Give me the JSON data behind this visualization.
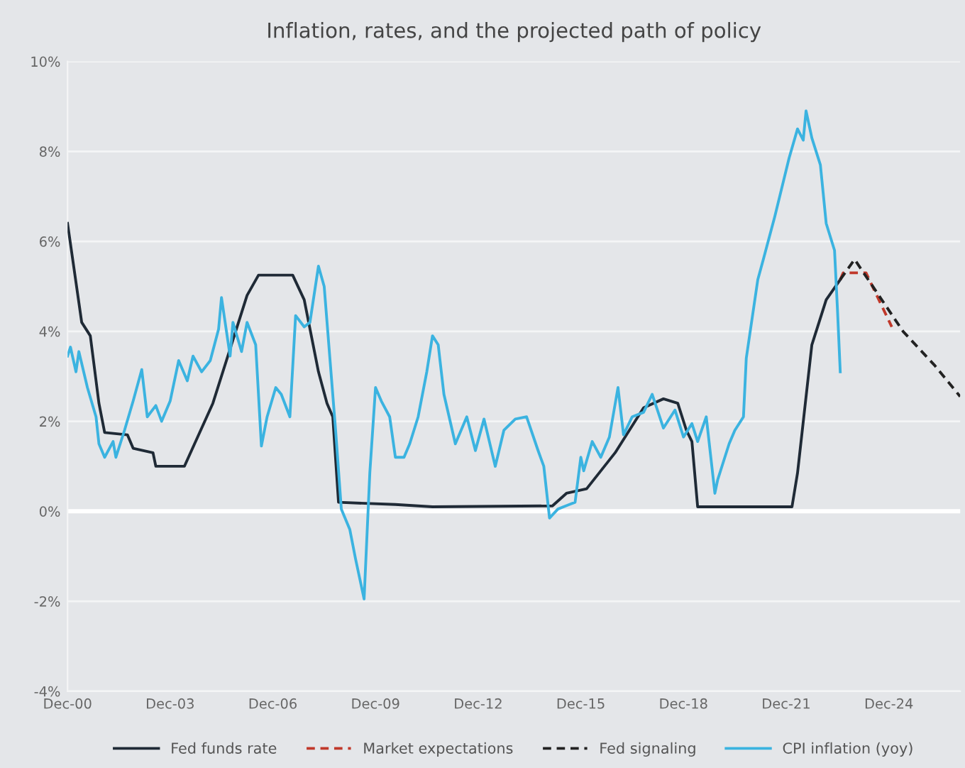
{
  "chart_data": {
    "type": "line",
    "title": "Inflation, rates, and the projected path of policy",
    "xlim": [
      "2000-12",
      "2027-01"
    ],
    "xticks": [
      {
        "value": "2000-12",
        "label": "Dec-00"
      },
      {
        "value": "2003-12",
        "label": "Dec-03"
      },
      {
        "value": "2006-12",
        "label": "Dec-06"
      },
      {
        "value": "2009-12",
        "label": "Dec-09"
      },
      {
        "value": "2012-12",
        "label": "Dec-12"
      },
      {
        "value": "2015-12",
        "label": "Dec-15"
      },
      {
        "value": "2018-12",
        "label": "Dec-18"
      },
      {
        "value": "2021-12",
        "label": "Dec-21"
      },
      {
        "value": "2024-12",
        "label": "Dec-24"
      }
    ],
    "ylim": [
      -4,
      10
    ],
    "yticks": [
      {
        "value": -4,
        "label": "-4%"
      },
      {
        "value": -2,
        "label": "-2%"
      },
      {
        "value": 0,
        "label": "0%"
      },
      {
        "value": 2,
        "label": "2%"
      },
      {
        "value": 4,
        "label": "4%"
      },
      {
        "value": 6,
        "label": "6%"
      },
      {
        "value": 8,
        "label": "8%"
      },
      {
        "value": 10,
        "label": "10%"
      }
    ],
    "grid": "y",
    "legend": "bottom",
    "ref_lines": [
      {
        "axis": "y",
        "value": 0,
        "color": "#ffffff"
      }
    ],
    "series": [
      {
        "name": "Fed funds rate",
        "color": "#1f2a36",
        "line_style": "solid",
        "x": [
          "2000-12",
          "2001-05",
          "2001-08",
          "2001-11",
          "2002-01",
          "2002-09",
          "2002-11",
          "2003-06",
          "2003-07",
          "2004-05",
          "2005-03",
          "2006-03",
          "2006-07",
          "2007-07",
          "2007-11",
          "2008-04",
          "2008-07",
          "2008-09",
          "2008-11",
          "2010-07",
          "2011-08",
          "2015-02",
          "2015-07",
          "2016-02",
          "2016-12",
          "2017-10",
          "2018-05",
          "2018-10",
          "2019-01",
          "2019-03",
          "2019-05",
          "2022-02",
          "2022-04",
          "2022-09",
          "2023-02",
          "2023-07"
        ],
        "values": [
          6.4,
          4.2,
          3.9,
          2.4,
          1.75,
          1.7,
          1.4,
          1.3,
          1.0,
          1.0,
          2.4,
          4.8,
          5.25,
          5.25,
          4.7,
          3.1,
          2.4,
          2.1,
          0.2,
          0.15,
          0.1,
          0.12,
          0.4,
          0.5,
          1.3,
          2.3,
          2.5,
          2.4,
          1.8,
          1.55,
          0.1,
          0.1,
          0.85,
          3.7,
          4.7,
          5.15
        ]
      },
      {
        "name": "Market expectations",
        "color": "#c0392b",
        "line_style": "dashed",
        "x": [
          "2023-07",
          "2023-08",
          "2024-04",
          "2025-01"
        ],
        "values": [
          5.15,
          5.3,
          5.3,
          4.1
        ]
      },
      {
        "name": "Fed signaling",
        "color": "#222222",
        "line_style": "dashed",
        "x": [
          "2023-07",
          "2023-12",
          "2025-05",
          "2026-04",
          "2027-01"
        ],
        "values": [
          5.15,
          5.6,
          4.0,
          3.25,
          2.55
        ]
      },
      {
        "name": "CPI inflation (yoy)",
        "color": "#3bb3e0",
        "line_style": "solid",
        "x": [
          "2000-12",
          "2001-01",
          "2001-03",
          "2001-04",
          "2001-07",
          "2001-10",
          "2001-11",
          "2002-01",
          "2002-04",
          "2002-05",
          "2002-08",
          "2002-11",
          "2003-02",
          "2003-04",
          "2003-07",
          "2003-09",
          "2003-12",
          "2004-03",
          "2004-06",
          "2004-08",
          "2004-11",
          "2005-02",
          "2005-05",
          "2005-06",
          "2005-09",
          "2005-10",
          "2006-01",
          "2006-03",
          "2006-06",
          "2006-08",
          "2006-10",
          "2007-01",
          "2007-03",
          "2007-06",
          "2007-08",
          "2007-11",
          "2008-01",
          "2008-04",
          "2008-06",
          "2008-08",
          "2008-10",
          "2008-12",
          "2009-03",
          "2009-05",
          "2009-08",
          "2009-10",
          "2009-12",
          "2010-02",
          "2010-05",
          "2010-07",
          "2010-10",
          "2010-12",
          "2011-03",
          "2011-06",
          "2011-08",
          "2011-10",
          "2011-12",
          "2012-04",
          "2012-08",
          "2012-11",
          "2013-02",
          "2013-06",
          "2013-09",
          "2014-01",
          "2014-05",
          "2014-09",
          "2014-11",
          "2015-01",
          "2015-04",
          "2015-08",
          "2015-10",
          "2015-12",
          "2016-01",
          "2016-04",
          "2016-07",
          "2016-10",
          "2017-01",
          "2017-03",
          "2017-06",
          "2017-10",
          "2018-01",
          "2018-05",
          "2018-09",
          "2018-12",
          "2019-03",
          "2019-05",
          "2019-08",
          "2019-11",
          "2019-12",
          "2020-04",
          "2020-06",
          "2020-09",
          "2020-10",
          "2021-02",
          "2021-04",
          "2021-08",
          "2022-01",
          "2022-04",
          "2022-06",
          "2022-07",
          "2022-09",
          "2022-12",
          "2023-02",
          "2023-05",
          "2023-06",
          "2023-07"
        ],
        "values": [
          3.45,
          3.65,
          3.1,
          3.55,
          2.75,
          2.1,
          1.5,
          1.2,
          1.55,
          1.2,
          1.8,
          2.45,
          3.15,
          2.1,
          2.35,
          2.0,
          2.45,
          3.35,
          2.9,
          3.45,
          3.1,
          3.35,
          4.05,
          4.75,
          3.45,
          4.2,
          3.55,
          4.2,
          3.7,
          1.45,
          2.1,
          2.75,
          2.6,
          2.1,
          4.35,
          4.1,
          4.2,
          5.45,
          5.0,
          3.4,
          1.8,
          0.05,
          -0.4,
          -1.05,
          -1.95,
          0.85,
          2.75,
          2.45,
          2.1,
          1.2,
          1.2,
          1.5,
          2.1,
          3.1,
          3.9,
          3.7,
          2.6,
          1.5,
          2.1,
          1.35,
          2.05,
          1.0,
          1.8,
          2.05,
          2.1,
          1.35,
          1.0,
          -0.15,
          0.05,
          0.15,
          0.2,
          1.2,
          0.9,
          1.55,
          1.2,
          1.65,
          2.75,
          1.7,
          2.1,
          2.2,
          2.6,
          1.85,
          2.25,
          1.65,
          1.95,
          1.55,
          2.1,
          0.4,
          0.7,
          1.5,
          1.8,
          2.1,
          3.4,
          5.15,
          5.6,
          6.55,
          7.85,
          8.5,
          8.25,
          8.9,
          8.3,
          7.7,
          6.4,
          5.8,
          4.5,
          3.1
        ]
      }
    ]
  }
}
